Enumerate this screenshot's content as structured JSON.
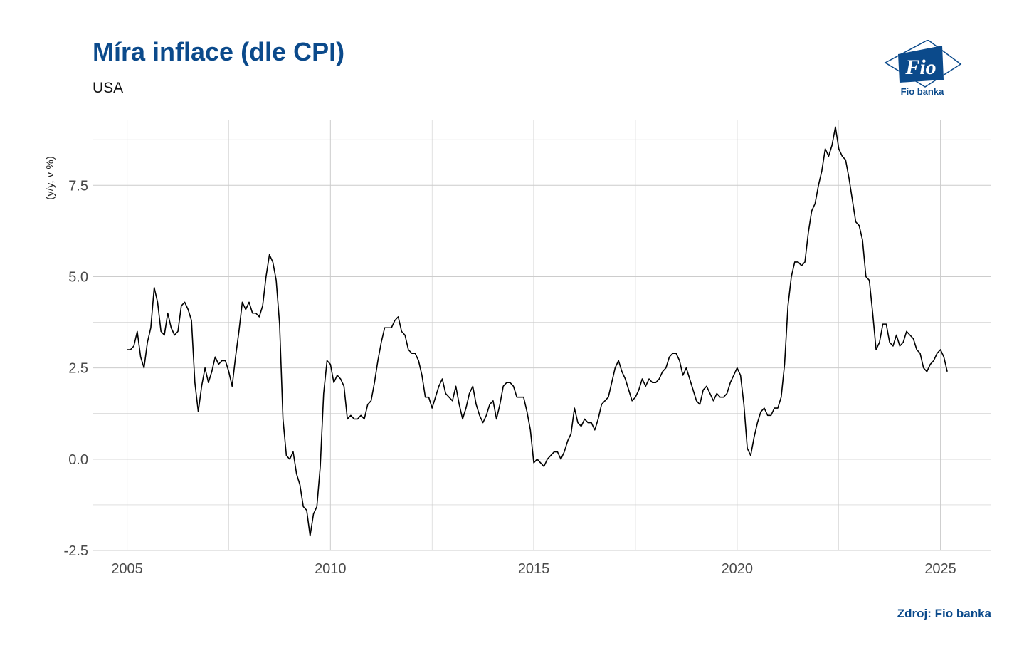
{
  "header": {
    "title": "Míra inflace (dle CPI)",
    "subtitle": "USA",
    "logo_text": "Fio banka",
    "source": "Zdroj: Fio banka"
  },
  "colors": {
    "brand": "#0b4a8b",
    "line": "#000000",
    "grid": "#cccccc"
  },
  "chart_data": {
    "type": "line",
    "title": "Míra inflace (dle CPI)",
    "subtitle": "USA",
    "xlabel": "",
    "ylabel": "(y/y, v %)",
    "xlim": [
      2004.15,
      2026.25
    ],
    "ylim": [
      -2.5,
      9.3
    ],
    "x_ticks": [
      2005,
      2010,
      2015,
      2020,
      2025
    ],
    "x_tick_labels": [
      "2005",
      "2010",
      "2015",
      "2020",
      "2025"
    ],
    "y_ticks": [
      -2.5,
      0,
      2.5,
      5,
      7.5
    ],
    "y_tick_labels": [
      "-2.5",
      "0.0",
      "2.5",
      "5.0",
      "7.5"
    ],
    "grid": true,
    "legend": "none",
    "series": [
      {
        "x_start": "2005-01",
        "frequency": "monthly",
        "values": [
          3.0,
          3.0,
          3.1,
          3.5,
          2.8,
          2.5,
          3.2,
          3.6,
          4.7,
          4.3,
          3.5,
          3.4,
          4.0,
          3.6,
          3.4,
          3.5,
          4.2,
          4.3,
          4.1,
          3.8,
          2.1,
          1.3,
          2.0,
          2.5,
          2.1,
          2.4,
          2.8,
          2.6,
          2.7,
          2.7,
          2.4,
          2.0,
          2.8,
          3.5,
          4.3,
          4.1,
          4.3,
          4.0,
          4.0,
          3.9,
          4.2,
          5.0,
          5.6,
          5.4,
          4.9,
          3.7,
          1.1,
          0.1,
          0.0,
          0.2,
          -0.4,
          -0.7,
          -1.3,
          -1.4,
          -2.1,
          -1.5,
          -1.3,
          -0.2,
          1.8,
          2.7,
          2.6,
          2.1,
          2.3,
          2.2,
          2.0,
          1.1,
          1.2,
          1.1,
          1.1,
          1.2,
          1.1,
          1.5,
          1.6,
          2.1,
          2.7,
          3.2,
          3.6,
          3.6,
          3.6,
          3.8,
          3.9,
          3.5,
          3.4,
          3.0,
          2.9,
          2.9,
          2.7,
          2.3,
          1.7,
          1.7,
          1.4,
          1.7,
          2.0,
          2.2,
          1.8,
          1.7,
          1.6,
          2.0,
          1.5,
          1.1,
          1.4,
          1.8,
          2.0,
          1.5,
          1.2,
          1.0,
          1.2,
          1.5,
          1.6,
          1.1,
          1.5,
          2.0,
          2.1,
          2.1,
          2.0,
          1.7,
          1.7,
          1.7,
          1.3,
          0.8,
          -0.1,
          0.0,
          -0.1,
          -0.2,
          0.0,
          0.1,
          0.2,
          0.2,
          0.0,
          0.2,
          0.5,
          0.7,
          1.4,
          1.0,
          0.9,
          1.1,
          1.0,
          1.0,
          0.8,
          1.1,
          1.5,
          1.6,
          1.7,
          2.1,
          2.5,
          2.7,
          2.4,
          2.2,
          1.9,
          1.6,
          1.7,
          1.9,
          2.2,
          2.0,
          2.2,
          2.1,
          2.1,
          2.2,
          2.4,
          2.5,
          2.8,
          2.9,
          2.9,
          2.7,
          2.3,
          2.5,
          2.2,
          1.9,
          1.6,
          1.5,
          1.9,
          2.0,
          1.8,
          1.6,
          1.8,
          1.7,
          1.7,
          1.8,
          2.1,
          2.3,
          2.5,
          2.3,
          1.5,
          0.3,
          0.1,
          0.6,
          1.0,
          1.3,
          1.4,
          1.2,
          1.2,
          1.4,
          1.4,
          1.7,
          2.6,
          4.2,
          5.0,
          5.4,
          5.4,
          5.3,
          5.4,
          6.2,
          6.8,
          7.0,
          7.5,
          7.9,
          8.5,
          8.3,
          8.6,
          9.1,
          8.5,
          8.3,
          8.2,
          7.7,
          7.1,
          6.5,
          6.4,
          6.0,
          5.0,
          4.9,
          4.0,
          3.0,
          3.2,
          3.7,
          3.7,
          3.2,
          3.1,
          3.4,
          3.1,
          3.2,
          3.5,
          3.4,
          3.3,
          3.0,
          2.9,
          2.5,
          2.4,
          2.6,
          2.7,
          2.9,
          3.0,
          2.8,
          2.4
        ]
      }
    ]
  }
}
